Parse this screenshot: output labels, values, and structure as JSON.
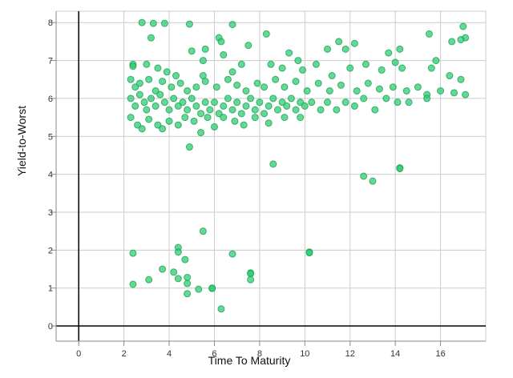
{
  "chart_data": {
    "type": "scatter",
    "title": "",
    "xlabel": "Time To Maturity",
    "ylabel": "Yield-to-Worst",
    "xlim": [
      -1,
      18
    ],
    "ylim": [
      -0.4,
      8.3
    ],
    "x_ticks": [
      0,
      2,
      4,
      6,
      8,
      10,
      12,
      14,
      16
    ],
    "y_ticks": [
      0,
      1,
      2,
      3,
      4,
      5,
      6,
      7,
      8
    ],
    "grid": true,
    "legend": "none",
    "colors": {
      "point_fill": "#2ecc71",
      "point_stroke": "#1e9e55",
      "grid": "#cccccc",
      "axis": "#000000"
    },
    "series": [
      {
        "points": [
          [
            2.8,
            8.0
          ],
          [
            3.3,
            7.98
          ],
          [
            3.8,
            7.98
          ],
          [
            4.9,
            7.96
          ],
          [
            6.8,
            7.95
          ],
          [
            3.2,
            7.6
          ],
          [
            6.2,
            7.6
          ],
          [
            6.3,
            7.5
          ],
          [
            7.5,
            7.4
          ],
          [
            8.3,
            7.7
          ],
          [
            5.0,
            7.25
          ],
          [
            5.6,
            7.3
          ],
          [
            5.5,
            7.0
          ],
          [
            6.4,
            7.15
          ],
          [
            9.3,
            7.2
          ],
          [
            9.7,
            7.0
          ],
          [
            11.0,
            7.3
          ],
          [
            11.5,
            7.5
          ],
          [
            11.8,
            7.3
          ],
          [
            12.2,
            7.45
          ],
          [
            13.7,
            7.2
          ],
          [
            14.2,
            7.3
          ],
          [
            15.5,
            7.7
          ],
          [
            15.8,
            7.0
          ],
          [
            16.5,
            7.5
          ],
          [
            17.0,
            7.9
          ],
          [
            17.1,
            7.6
          ],
          [
            16.9,
            7.55
          ],
          [
            2.4,
            6.9
          ],
          [
            2.4,
            6.85
          ],
          [
            3.0,
            6.9
          ],
          [
            3.5,
            6.8
          ],
          [
            3.9,
            6.7
          ],
          [
            4.3,
            6.6
          ],
          [
            5.5,
            6.6
          ],
          [
            6.8,
            6.7
          ],
          [
            7.2,
            6.9
          ],
          [
            8.5,
            6.9
          ],
          [
            9.0,
            6.8
          ],
          [
            9.9,
            6.75
          ],
          [
            10.5,
            6.9
          ],
          [
            11.2,
            6.6
          ],
          [
            12.0,
            6.8
          ],
          [
            12.7,
            6.9
          ],
          [
            13.4,
            6.75
          ],
          [
            14.0,
            6.95
          ],
          [
            14.3,
            6.8
          ],
          [
            15.6,
            6.8
          ],
          [
            16.4,
            6.6
          ],
          [
            16.9,
            6.5
          ],
          [
            2.3,
            6.5
          ],
          [
            2.5,
            6.3
          ],
          [
            2.7,
            6.4
          ],
          [
            3.1,
            6.5
          ],
          [
            3.4,
            6.2
          ],
          [
            3.7,
            6.45
          ],
          [
            4.1,
            6.3
          ],
          [
            4.5,
            6.4
          ],
          [
            4.8,
            6.2
          ],
          [
            5.2,
            6.3
          ],
          [
            5.6,
            6.45
          ],
          [
            6.1,
            6.3
          ],
          [
            6.6,
            6.5
          ],
          [
            7.0,
            6.35
          ],
          [
            7.4,
            6.2
          ],
          [
            7.9,
            6.4
          ],
          [
            8.2,
            6.3
          ],
          [
            8.7,
            6.5
          ],
          [
            9.1,
            6.3
          ],
          [
            9.6,
            6.45
          ],
          [
            10.1,
            6.2
          ],
          [
            10.6,
            6.4
          ],
          [
            11.1,
            6.2
          ],
          [
            11.6,
            6.35
          ],
          [
            12.3,
            6.2
          ],
          [
            12.8,
            6.4
          ],
          [
            13.3,
            6.25
          ],
          [
            13.9,
            6.3
          ],
          [
            14.5,
            6.2
          ],
          [
            15.0,
            6.3
          ],
          [
            15.4,
            6.1
          ],
          [
            16.0,
            6.2
          ],
          [
            16.6,
            6.15
          ],
          [
            17.1,
            6.1
          ],
          [
            2.3,
            6.0
          ],
          [
            2.5,
            5.8
          ],
          [
            2.7,
            6.1
          ],
          [
            2.9,
            5.9
          ],
          [
            3.0,
            5.7
          ],
          [
            3.2,
            6.0
          ],
          [
            3.4,
            5.8
          ],
          [
            3.6,
            6.1
          ],
          [
            3.8,
            5.9
          ],
          [
            4.0,
            5.7
          ],
          [
            4.2,
            6.0
          ],
          [
            4.4,
            5.8
          ],
          [
            4.6,
            5.9
          ],
          [
            4.8,
            5.7
          ],
          [
            5.0,
            6.0
          ],
          [
            5.2,
            5.8
          ],
          [
            5.4,
            5.6
          ],
          [
            5.6,
            5.9
          ],
          [
            5.8,
            5.7
          ],
          [
            6.0,
            5.9
          ],
          [
            6.2,
            5.6
          ],
          [
            6.4,
            5.8
          ],
          [
            6.6,
            6.0
          ],
          [
            6.8,
            5.7
          ],
          [
            7.0,
            5.9
          ],
          [
            7.2,
            5.6
          ],
          [
            7.4,
            5.8
          ],
          [
            7.6,
            6.0
          ],
          [
            7.8,
            5.7
          ],
          [
            8.0,
            5.9
          ],
          [
            8.2,
            5.6
          ],
          [
            8.4,
            5.8
          ],
          [
            8.6,
            6.0
          ],
          [
            8.8,
            5.7
          ],
          [
            9.0,
            5.9
          ],
          [
            9.2,
            5.8
          ],
          [
            9.4,
            6.0
          ],
          [
            9.6,
            5.7
          ],
          [
            9.8,
            5.9
          ],
          [
            10.0,
            5.8
          ],
          [
            10.3,
            5.9
          ],
          [
            10.7,
            5.7
          ],
          [
            11.0,
            5.9
          ],
          [
            11.4,
            5.7
          ],
          [
            11.8,
            5.9
          ],
          [
            12.2,
            5.8
          ],
          [
            12.6,
            6.0
          ],
          [
            13.1,
            5.7
          ],
          [
            13.6,
            6.0
          ],
          [
            14.1,
            5.9
          ],
          [
            14.6,
            5.9
          ],
          [
            15.4,
            6.0
          ],
          [
            2.3,
            5.5
          ],
          [
            2.6,
            5.3
          ],
          [
            2.8,
            5.2
          ],
          [
            3.1,
            5.45
          ],
          [
            3.5,
            5.3
          ],
          [
            3.7,
            5.2
          ],
          [
            4.0,
            5.4
          ],
          [
            4.4,
            5.3
          ],
          [
            4.7,
            5.5
          ],
          [
            5.1,
            5.4
          ],
          [
            5.4,
            5.1
          ],
          [
            5.7,
            5.5
          ],
          [
            6.0,
            5.25
          ],
          [
            6.4,
            5.5
          ],
          [
            6.9,
            5.4
          ],
          [
            7.3,
            5.3
          ],
          [
            7.8,
            5.5
          ],
          [
            8.4,
            5.35
          ],
          [
            9.1,
            5.5
          ],
          [
            9.8,
            5.5
          ],
          [
            4.9,
            4.72
          ],
          [
            8.6,
            4.27
          ],
          [
            12.6,
            3.95
          ],
          [
            13.0,
            3.82
          ],
          [
            14.2,
            4.17
          ],
          [
            14.2,
            4.15
          ],
          [
            2.4,
            1.92
          ],
          [
            4.4,
            2.07
          ],
          [
            4.4,
            1.95
          ],
          [
            5.5,
            2.5
          ],
          [
            4.7,
            1.75
          ],
          [
            6.8,
            1.9
          ],
          [
            10.2,
            1.95
          ],
          [
            10.2,
            1.93
          ],
          [
            3.7,
            1.5
          ],
          [
            4.2,
            1.42
          ],
          [
            7.6,
            1.4
          ],
          [
            7.6,
            1.38
          ],
          [
            3.1,
            1.22
          ],
          [
            4.4,
            1.25
          ],
          [
            4.8,
            1.28
          ],
          [
            7.6,
            1.22
          ],
          [
            2.4,
            1.1
          ],
          [
            4.8,
            1.12
          ],
          [
            5.3,
            0.97
          ],
          [
            5.9,
            1.0
          ],
          [
            5.9,
            0.99
          ],
          [
            4.8,
            0.85
          ],
          [
            6.3,
            0.45
          ]
        ]
      }
    ]
  }
}
